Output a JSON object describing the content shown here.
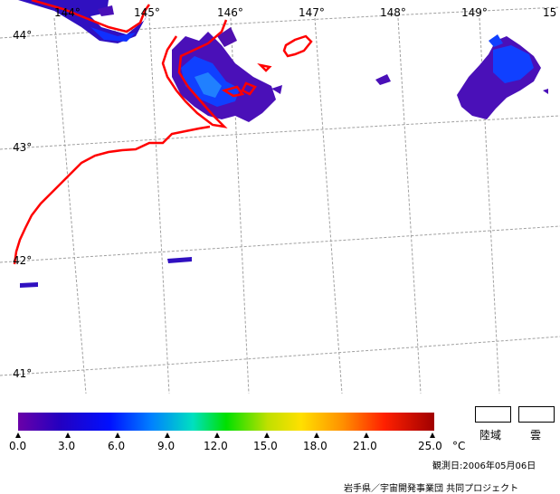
{
  "map": {
    "longitude_labels": [
      "144°",
      "145°",
      "146°",
      "147°",
      "148°",
      "149°",
      "15"
    ],
    "latitude_labels": [
      "44°",
      "43°",
      "42°",
      "41°"
    ]
  },
  "colorbar": {
    "tick_labels": [
      "0.0",
      "3.0",
      "6.0",
      "9.0",
      "12.0",
      "15.0",
      "18.0",
      "21.0",
      "25.0"
    ],
    "unit": "°C",
    "colors": [
      "#6a00a8",
      "#2000c8",
      "#0000ff",
      "#0090ff",
      "#00e0e0",
      "#00e000",
      "#a0e000",
      "#ffe000",
      "#ff8000",
      "#ff0000",
      "#a00000"
    ]
  },
  "legend": {
    "land_label": "陸域",
    "cloud_label": "雲"
  },
  "footer": {
    "observation_date": "観測日:2006年05月06日",
    "credit": "岩手県／宇宙開発事業団 共同プロジェクト"
  }
}
